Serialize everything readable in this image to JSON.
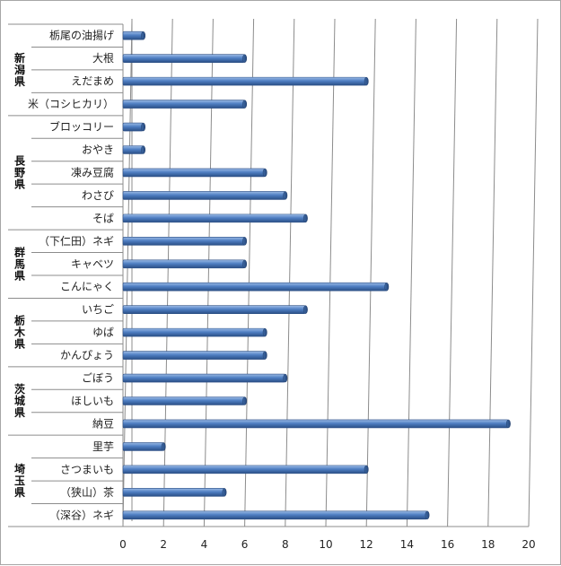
{
  "chart_data": {
    "type": "bar",
    "orientation": "horizontal",
    "title": "",
    "xlabel": "",
    "ylabel": "",
    "xlim": [
      0,
      20
    ],
    "xticks": [
      0,
      2,
      4,
      6,
      8,
      10,
      12,
      14,
      16,
      18,
      20
    ],
    "grid": true,
    "legend": "none",
    "bar_color": "#4f7fc3",
    "groups": [
      {
        "name": "新潟県",
        "items": [
          {
            "label": "栃尾の油揚げ",
            "value": 1
          },
          {
            "label": "大根",
            "value": 6
          },
          {
            "label": "えだまめ",
            "value": 12
          },
          {
            "label": "米（コシヒカリ）",
            "value": 6
          }
        ]
      },
      {
        "name": "長野県",
        "items": [
          {
            "label": "ブロッコリー",
            "value": 1
          },
          {
            "label": "おやき",
            "value": 1
          },
          {
            "label": "凍み豆腐",
            "value": 7
          },
          {
            "label": "わさび",
            "value": 8
          },
          {
            "label": "そば",
            "value": 9
          }
        ]
      },
      {
        "name": "群馬県",
        "items": [
          {
            "label": "（下仁田）ネギ",
            "value": 6
          },
          {
            "label": "キャベツ",
            "value": 6
          },
          {
            "label": "こんにゃく",
            "value": 13
          }
        ]
      },
      {
        "name": "栃木県",
        "items": [
          {
            "label": "いちご",
            "value": 9
          },
          {
            "label": "ゆば",
            "value": 7
          },
          {
            "label": "かんぴょう",
            "value": 7
          }
        ]
      },
      {
        "name": "茨城県",
        "items": [
          {
            "label": "ごぼう",
            "value": 8
          },
          {
            "label": "ほしいも",
            "value": 6
          },
          {
            "label": "納豆",
            "value": 19
          }
        ]
      },
      {
        "name": "埼玉県",
        "items": [
          {
            "label": "里芋",
            "value": 2
          },
          {
            "label": "さつまいも",
            "value": 12
          },
          {
            "label": "（狭山）茶",
            "value": 5
          },
          {
            "label": "（深谷）ネギ",
            "value": 15
          }
        ]
      }
    ]
  }
}
